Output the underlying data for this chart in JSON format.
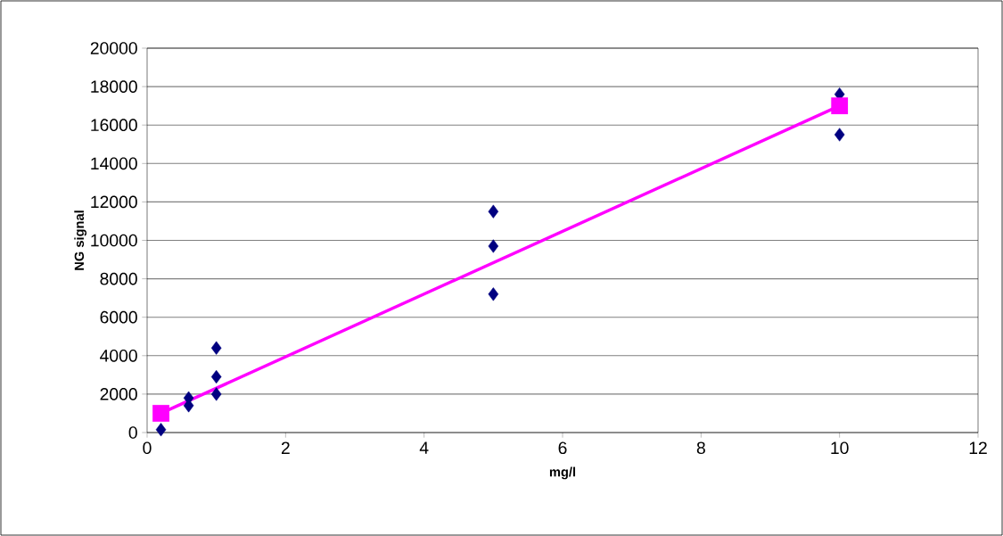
{
  "chart_data": {
    "type": "scatter",
    "xlabel": "mg/l",
    "ylabel": "NG signal",
    "xlim": [
      0,
      12
    ],
    "xticks": [
      0,
      2,
      4,
      6,
      8,
      10,
      12
    ],
    "ylim": [
      0,
      20000
    ],
    "yticks": [
      0,
      2000,
      4000,
      6000,
      8000,
      10000,
      12000,
      14000,
      16000,
      18000,
      20000
    ],
    "grid": "y",
    "series": [
      {
        "color": "#000080",
        "marker": "diamond",
        "x": [
          0.2,
          0.6,
          0.6,
          1,
          1,
          1,
          5,
          5,
          5,
          10,
          10
        ],
        "values": [
          150,
          1800,
          1400,
          4400,
          2900,
          2000,
          11500,
          9700,
          7200,
          17600,
          15500
        ]
      },
      {
        "type": "line",
        "color": "#ff00ff",
        "marker": "square",
        "line_style": "solid",
        "x": [
          0.2,
          10
        ],
        "values": [
          1000,
          17000
        ]
      }
    ]
  }
}
